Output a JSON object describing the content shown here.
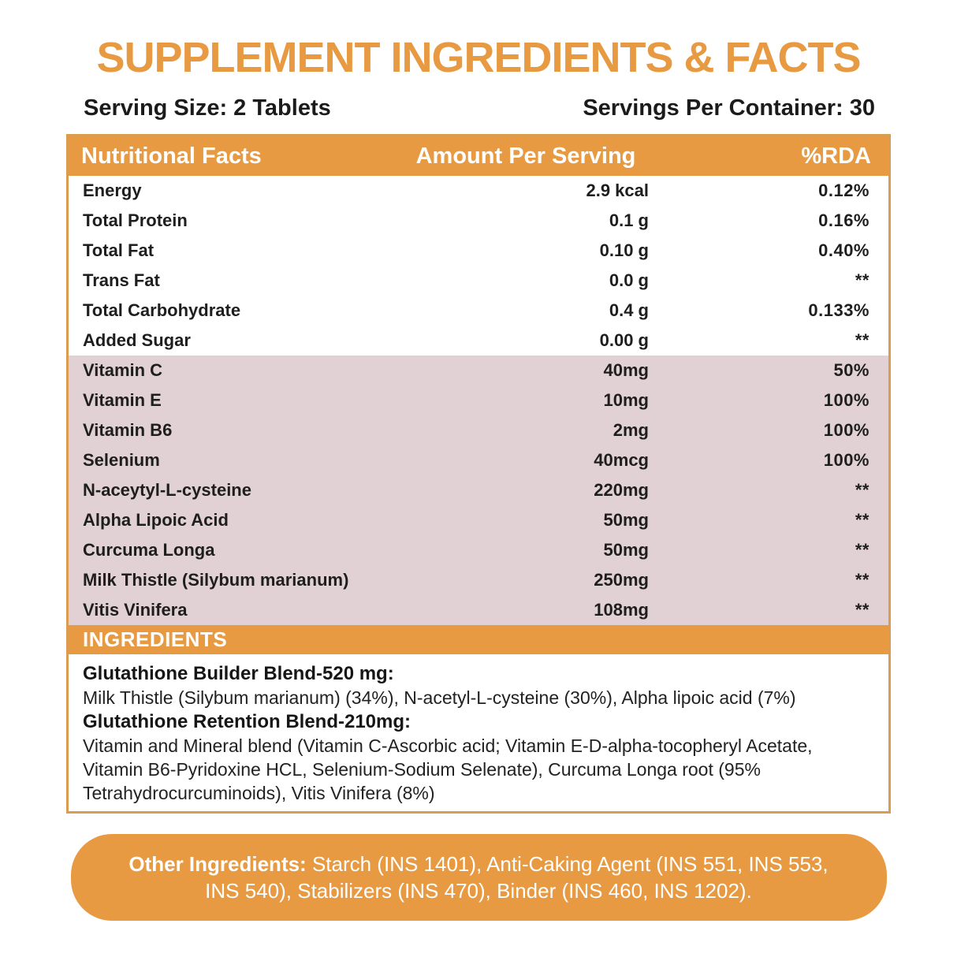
{
  "page": {
    "title": "SUPPLEMENT INGREDIENTS & FACTS"
  },
  "serving": {
    "size_label": "Serving Size: 2 Tablets",
    "per_container_label": "Servings Per Container: 30"
  },
  "table": {
    "headers": {
      "name": "Nutritional Facts",
      "amount": "Amount Per Serving",
      "rda": "%RDA"
    },
    "rows": [
      {
        "name": "Energy",
        "amount": "2.9 kcal",
        "rda": "0.12%",
        "section": "macro"
      },
      {
        "name": "Total Protein",
        "amount": "0.1 g",
        "rda": "0.16%",
        "section": "macro"
      },
      {
        "name": "Total Fat",
        "amount": "0.10 g",
        "rda": "0.40%",
        "section": "macro"
      },
      {
        "name": "Trans Fat",
        "amount": "0.0 g",
        "rda": "**",
        "section": "macro"
      },
      {
        "name": "Total Carbohydrate",
        "amount": "0.4 g",
        "rda": "0.133%",
        "section": "macro"
      },
      {
        "name": "Added Sugar",
        "amount": "0.00 g",
        "rda": "**",
        "section": "macro"
      },
      {
        "name": "Vitamin C",
        "amount": "40mg",
        "rda": "50%",
        "section": "active"
      },
      {
        "name": "Vitamin E",
        "amount": "10mg",
        "rda": "100%",
        "section": "active"
      },
      {
        "name": "Vitamin B6",
        "amount": "2mg",
        "rda": "100%",
        "section": "active"
      },
      {
        "name": "Selenium",
        "amount": "40mcg",
        "rda": "100%",
        "section": "active"
      },
      {
        "name": "N-aceytyl-L-cysteine",
        "amount": "220mg",
        "rda": "**",
        "section": "active"
      },
      {
        "name": "Alpha Lipoic Acid",
        "amount": "50mg",
        "rda": "**",
        "section": "active"
      },
      {
        "name": "Curcuma Longa",
        "amount": "50mg",
        "rda": "**",
        "section": "active"
      },
      {
        "name": "Milk Thistle (Silybum marianum)",
        "amount": "250mg",
        "rda": "**",
        "section": "active"
      },
      {
        "name": "Vitis Vinifera",
        "amount": "108mg",
        "rda": "**",
        "section": "active"
      }
    ]
  },
  "ingredients": {
    "header": "INGREDIENTS",
    "blends": [
      {
        "title": "Glutathione Builder Blend-520 mg:",
        "body": "Milk Thistle (Silybum marianum) (34%), N-acetyl-L-cysteine (30%), Alpha lipoic acid (7%)"
      },
      {
        "title": "Glutathione Retention Blend-210mg:",
        "body": "Vitamin and Mineral blend (Vitamin C-Ascorbic acid; Vitamin E-D-alpha-tocopheryl Acetate, Vitamin B6-Pyridoxine HCL, Selenium-Sodium Selenate), Curcuma Longa root (95% Tetrahydrocurcuminoids), Vitis Vinifera (8%)"
      }
    ]
  },
  "other_ingredients": {
    "label": "Other Ingredients:",
    "text": " Starch (INS 1401), Anti-Caking Agent (INS 551, INS 553, INS 540), Stabilizers (INS 470), Binder (INS 460, INS 1202)."
  },
  "colors": {
    "orange": "#E79A41",
    "pink": "#E1D1D4",
    "table_border": "#D99C50",
    "text": "#1E1E1E"
  }
}
